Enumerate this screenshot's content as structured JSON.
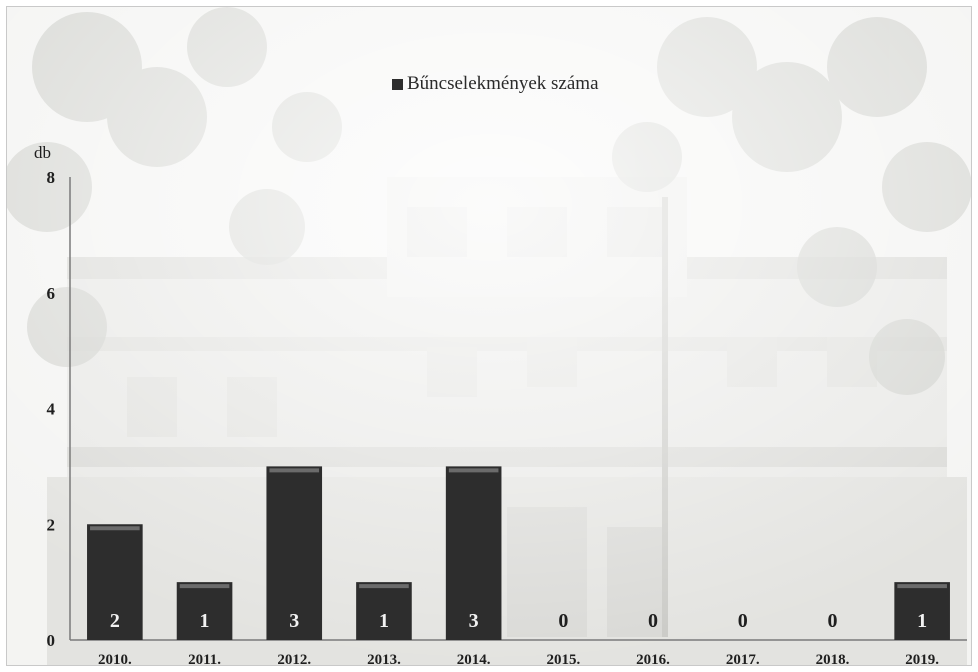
{
  "chart_data": {
    "type": "bar",
    "title": "",
    "xlabel": "",
    "ylabel": "db",
    "categories": [
      "2010.",
      "2011.",
      "2012.",
      "2013.",
      "2014.",
      "2015.",
      "2016.",
      "2017.",
      "2018.",
      "2019."
    ],
    "series": [
      {
        "name": "Bűncselekmények száma",
        "values": [
          2,
          1,
          3,
          1,
          3,
          0,
          0,
          0,
          0,
          1
        ]
      }
    ],
    "data_labels": [
      "2",
      "1",
      "3",
      "1",
      "3",
      "0",
      "0",
      "0",
      "0",
      "1"
    ],
    "y_ticks": [
      "0",
      "2",
      "4",
      "6",
      "8"
    ],
    "ylim": [
      0,
      8
    ],
    "grid": false,
    "legend_position": "top-center",
    "bar_color": "#2d2d2d",
    "background": "faded street photograph"
  }
}
